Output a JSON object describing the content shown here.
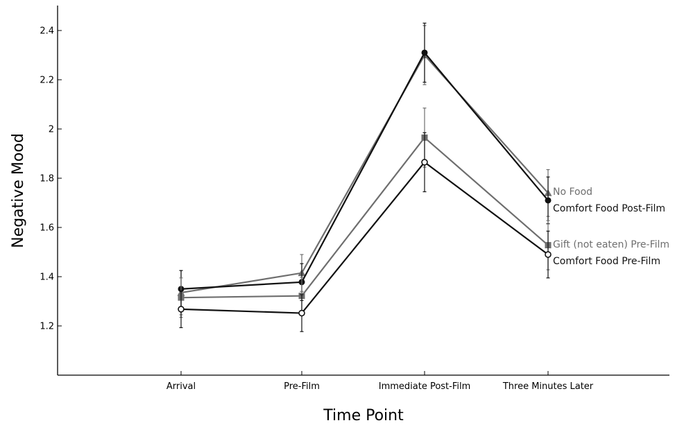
{
  "chart_data": {
    "type": "line",
    "title": "",
    "xlabel": "Time Point",
    "ylabel": "Negative Mood",
    "categories": [
      "Arrival",
      "Pre-Film",
      "Immediate Post-Film",
      "Three Minutes Later"
    ],
    "ylim": [
      1.0,
      2.5
    ],
    "yticks": [
      1.2,
      1.4,
      1.6,
      1.8,
      2.0,
      2.2,
      2.4
    ],
    "ytick_labels": [
      "1.2",
      "1.4",
      "1.6",
      "1.8",
      "2",
      "2.2",
      "2.4"
    ],
    "grid": false,
    "legend": "direct labels at right end of lines",
    "series": [
      {
        "name": "No Food",
        "color": "#6e6e6e",
        "marker": "triangle",
        "values": [
          1.335,
          1.415,
          2.3,
          1.74
        ],
        "errors": [
          0.09,
          0.075,
          0.12,
          0.095
        ]
      },
      {
        "name": "Comfort Food Post-Film",
        "color": "#111111",
        "marker": "filled-circle",
        "values": [
          1.35,
          1.378,
          2.31,
          1.71
        ],
        "errors": [
          0.075,
          0.075,
          0.12,
          0.095
        ]
      },
      {
        "name": "Gift (not eaten) Pre-Film",
        "color": "#6e6e6e",
        "marker": "square",
        "values": [
          1.315,
          1.322,
          1.965,
          1.528
        ],
        "errors": [
          0.08,
          0.075,
          0.12,
          0.1
        ]
      },
      {
        "name": "Comfort Food Pre-Film",
        "color": "#111111",
        "marker": "open-circle",
        "values": [
          1.268,
          1.252,
          1.865,
          1.49
        ],
        "errors": [
          0.075,
          0.075,
          0.12,
          0.095
        ]
      }
    ]
  }
}
